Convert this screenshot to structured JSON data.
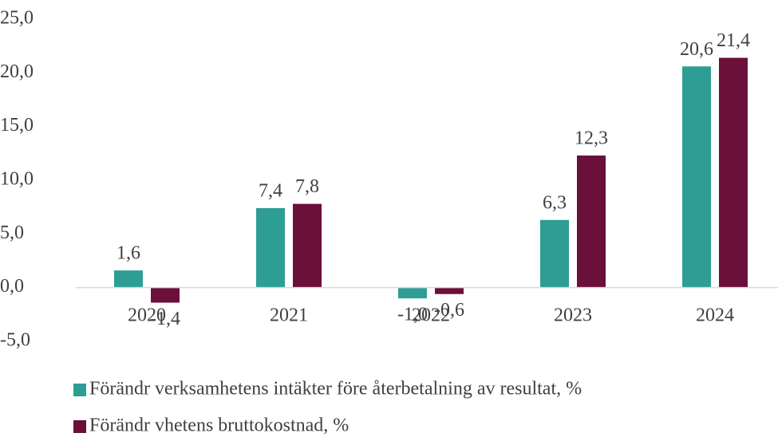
{
  "chart_data": {
    "type": "bar",
    "categories": [
      "2020",
      "2021",
      "2022",
      "2023",
      "2024"
    ],
    "series": [
      {
        "name": "Förändr verksamhetens intäkter före återbetalning av resultat, %",
        "color": "#2e9e94",
        "values": [
          1.6,
          7.4,
          -1.0,
          6.3,
          20.6
        ],
        "value_labels": [
          "1,6",
          "7,4",
          "-1,0",
          "6,3",
          "20,6"
        ]
      },
      {
        "name": "Förändr vhetens bruttokostnad, %",
        "color": "#6b0f3b",
        "values": [
          -1.4,
          7.8,
          -0.6,
          12.3,
          21.4
        ],
        "value_labels": [
          "-1,4",
          "7,8",
          "-0,6",
          "12,3",
          "21,4"
        ]
      }
    ],
    "ylim": [
      -5,
      25
    ],
    "yticks": [
      {
        "value": -5,
        "label": "-5,0"
      },
      {
        "value": 0,
        "label": "0,0"
      },
      {
        "value": 5,
        "label": "5,0"
      },
      {
        "value": 10,
        "label": "10,0"
      },
      {
        "value": 15,
        "label": "15,0"
      },
      {
        "value": 20,
        "label": "20,0"
      },
      {
        "value": 25,
        "label": "25,0"
      }
    ],
    "grid": false,
    "legend": "bottom"
  }
}
